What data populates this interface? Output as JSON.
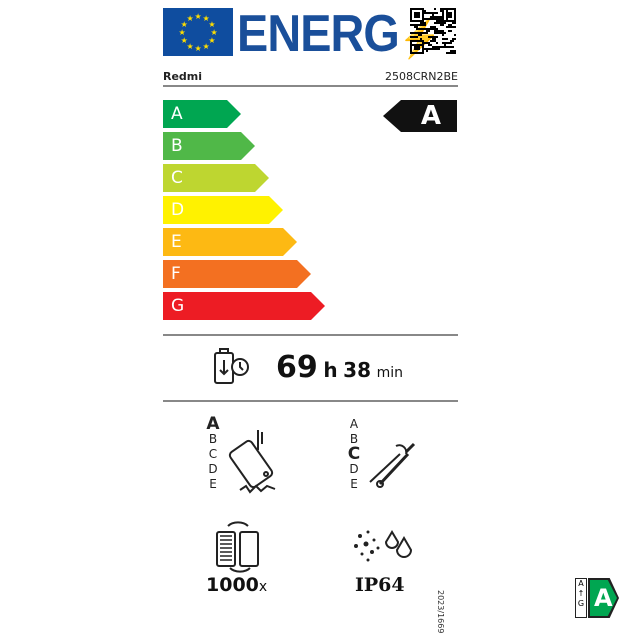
{
  "header": {
    "logo_text": "ENERG",
    "brand": "Redmi",
    "model": "2508CRN2BE"
  },
  "scale": [
    {
      "label": "A",
      "color": "#00a651"
    },
    {
      "label": "B",
      "color": "#50b848"
    },
    {
      "label": "C",
      "color": "#bed630"
    },
    {
      "label": "D",
      "color": "#fff200"
    },
    {
      "label": "E",
      "color": "#fdb913"
    },
    {
      "label": "F",
      "color": "#f37021"
    },
    {
      "label": "G",
      "color": "#ed1c24"
    }
  ],
  "energy_class": "A",
  "battery_endurance": {
    "hours": "69",
    "h_unit": "h",
    "minutes": "38",
    "min_unit": "min"
  },
  "drop_resistance": {
    "classes": [
      "A",
      "B",
      "C",
      "D",
      "E"
    ],
    "selected": "A"
  },
  "repairability": {
    "classes": [
      "A",
      "B",
      "C",
      "D",
      "E"
    ],
    "selected": "C"
  },
  "battery_cycles": {
    "value": "1000",
    "unit": "x"
  },
  "ip_rating": "IP64",
  "regulation": "2023/1669",
  "badge": {
    "range_top": "A",
    "range_bottom": "G",
    "class": "A",
    "color": "#00a651"
  }
}
